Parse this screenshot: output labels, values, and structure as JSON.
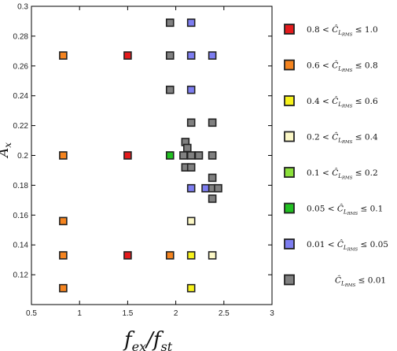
{
  "chart_data": {
    "type": "scatter",
    "xlabel": "f_ex/f_st",
    "ylabel": "A_x",
    "xlim": [
      0.5,
      3
    ],
    "ylim": [
      0.1,
      0.3
    ],
    "xticks": [
      "0.5",
      "1",
      "1.5",
      "2",
      "2.5",
      "3"
    ],
    "yticks": [
      "0.12",
      "0.14",
      "0.16",
      "0.18",
      "0.2",
      "0.22",
      "0.24",
      "0.26",
      "0.28",
      "0.3"
    ],
    "legend_position": "right",
    "classes": [
      {
        "key": "c1",
        "lower": "0.8",
        "upper": "1.0",
        "color": "#e41a1c"
      },
      {
        "key": "c2",
        "lower": "0.6",
        "upper": "0.8",
        "color": "#f5841f"
      },
      {
        "key": "c3",
        "lower": "0.4",
        "upper": "0.6",
        "color": "#f7f21b"
      },
      {
        "key": "c4",
        "lower": "0.2",
        "upper": "0.4",
        "color": "#fbf7c6"
      },
      {
        "key": "c5",
        "lower": "0.1",
        "upper": "0.2",
        "color": "#8be03a"
      },
      {
        "key": "c6",
        "lower": "0.05",
        "upper": "0.1",
        "color": "#21c021"
      },
      {
        "key": "c7",
        "lower": "0.01",
        "upper": "0.05",
        "color": "#7d7df0"
      },
      {
        "key": "c8",
        "lower": "",
        "upper": "0.01",
        "color": "#808080"
      }
    ],
    "points": [
      {
        "x": 0.83,
        "y": 0.267,
        "c": "c2"
      },
      {
        "x": 0.83,
        "y": 0.2,
        "c": "c2"
      },
      {
        "x": 0.83,
        "y": 0.156,
        "c": "c2"
      },
      {
        "x": 0.83,
        "y": 0.133,
        "c": "c2"
      },
      {
        "x": 0.83,
        "y": 0.111,
        "c": "c2"
      },
      {
        "x": 1.5,
        "y": 0.267,
        "c": "c1"
      },
      {
        "x": 1.5,
        "y": 0.2,
        "c": "c1"
      },
      {
        "x": 1.5,
        "y": 0.133,
        "c": "c1"
      },
      {
        "x": 1.94,
        "y": 0.289,
        "c": "c8"
      },
      {
        "x": 1.94,
        "y": 0.267,
        "c": "c8"
      },
      {
        "x": 1.94,
        "y": 0.244,
        "c": "c8"
      },
      {
        "x": 1.94,
        "y": 0.2,
        "c": "c6"
      },
      {
        "x": 1.94,
        "y": 0.133,
        "c": "c2"
      },
      {
        "x": 2.16,
        "y": 0.289,
        "c": "c7"
      },
      {
        "x": 2.16,
        "y": 0.267,
        "c": "c7"
      },
      {
        "x": 2.16,
        "y": 0.244,
        "c": "c7"
      },
      {
        "x": 2.16,
        "y": 0.222,
        "c": "c8"
      },
      {
        "x": 2.16,
        "y": 0.178,
        "c": "c7"
      },
      {
        "x": 2.16,
        "y": 0.156,
        "c": "c4"
      },
      {
        "x": 2.16,
        "y": 0.133,
        "c": "c3"
      },
      {
        "x": 2.16,
        "y": 0.111,
        "c": "c3"
      },
      {
        "x": 2.38,
        "y": 0.267,
        "c": "c7"
      },
      {
        "x": 2.38,
        "y": 0.222,
        "c": "c8"
      },
      {
        "x": 2.38,
        "y": 0.2,
        "c": "c8"
      },
      {
        "x": 2.38,
        "y": 0.133,
        "c": "c4"
      },
      {
        "x": 2.1,
        "y": 0.209,
        "c": "c8"
      },
      {
        "x": 2.12,
        "y": 0.205,
        "c": "c8"
      },
      {
        "x": 2.08,
        "y": 0.2,
        "c": "c8"
      },
      {
        "x": 2.16,
        "y": 0.2,
        "c": "c8"
      },
      {
        "x": 2.24,
        "y": 0.2,
        "c": "c8"
      },
      {
        "x": 2.1,
        "y": 0.192,
        "c": "c8"
      },
      {
        "x": 2.16,
        "y": 0.192,
        "c": "c8"
      },
      {
        "x": 2.31,
        "y": 0.178,
        "c": "c7"
      },
      {
        "x": 2.38,
        "y": 0.178,
        "c": "c8"
      },
      {
        "x": 2.44,
        "y": 0.178,
        "c": "c8"
      },
      {
        "x": 2.38,
        "y": 0.185,
        "c": "c8"
      },
      {
        "x": 2.38,
        "y": 0.171,
        "c": "c8"
      }
    ]
  }
}
